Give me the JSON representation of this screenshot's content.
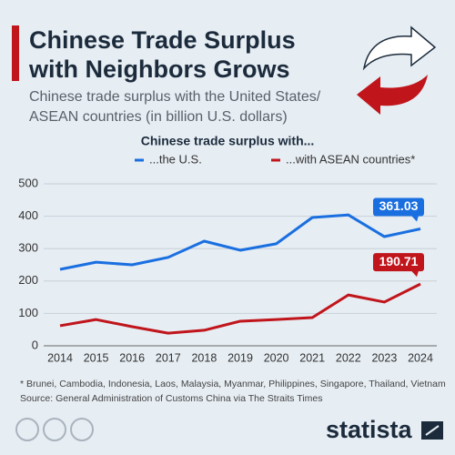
{
  "chart_data": {
    "type": "line",
    "title": [
      "Chinese Trade Surplus",
      "with Neighbors Grows"
    ],
    "subtitle": [
      "Chinese trade surplus with the United States/",
      "ASEAN countries (in billion U.S. dollars)"
    ],
    "legend_title": "Chinese trade surplus with...",
    "categories": [
      "2014",
      "2015",
      "2016",
      "2017",
      "2018",
      "2019",
      "2020",
      "2021",
      "2022",
      "2023",
      "2024"
    ],
    "series": [
      {
        "name": "...the U.S.",
        "color": "#1a6fe0",
        "values": [
          236,
          258,
          250,
          273,
          323,
          295,
          315,
          396,
          404,
          337,
          361.03
        ]
      },
      {
        "name": "...with ASEAN countries*",
        "color": "#c0151b",
        "values": [
          62,
          81,
          59,
          39,
          48,
          76,
          81,
          87,
          157,
          135,
          190.71
        ]
      }
    ],
    "ylim": [
      0,
      500
    ],
    "yticks": [
      0,
      100,
      200,
      300,
      400,
      500
    ],
    "grid": true,
    "footnote": "* Brunei, Cambodia, Indonesia, Laos, Malaysia, Myanmar, Philippines, Singapore, Thailand, Vietnam",
    "source": "Source: General Administration of Customs China via The Straits Times",
    "brand": "statista"
  }
}
